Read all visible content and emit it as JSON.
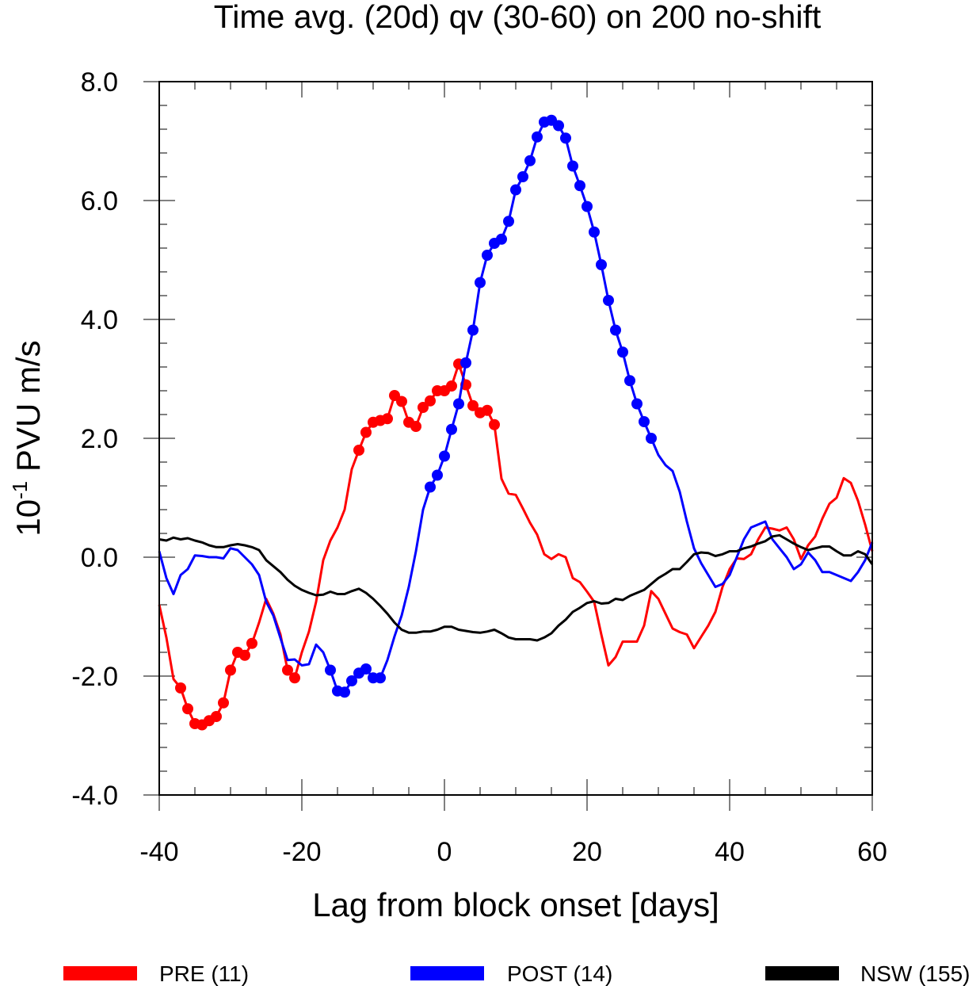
{
  "chart_data": {
    "type": "line",
    "title": "Time avg. (20d) qv (30-60) on 200 no-shift",
    "xlabel": "Lag from block onset [days]",
    "ylabel_base": "10",
    "ylabel_exponent": "-1",
    "ylabel_unit": "PVU m/s",
    "xlim": [
      -40,
      60
    ],
    "ylim": [
      -4,
      8
    ],
    "x_ticks": [
      -40,
      -20,
      0,
      20,
      40,
      60
    ],
    "x_tick_labels": [
      "-40",
      "-20",
      "0",
      "20",
      "40",
      "60"
    ],
    "y_ticks": [
      -4,
      -2,
      0,
      2,
      4,
      6,
      8
    ],
    "y_tick_labels": [
      "-4.0",
      "-2.0",
      "0.0",
      "2.0",
      "4.0",
      "6.0",
      "8.0"
    ],
    "x": [
      -40,
      -39,
      -38,
      -37,
      -36,
      -35,
      -34,
      -33,
      -32,
      -31,
      -30,
      -29,
      -28,
      -27,
      -26,
      -25,
      -24,
      -23,
      -22,
      -21,
      -20,
      -19,
      -18,
      -17,
      -16,
      -15,
      -14,
      -13,
      -12,
      -11,
      -10,
      -9,
      -8,
      -7,
      -6,
      -5,
      -4,
      -3,
      -2,
      -1,
      0,
      1,
      2,
      3,
      4,
      5,
      6,
      7,
      8,
      9,
      10,
      11,
      12,
      13,
      14,
      15,
      16,
      17,
      18,
      19,
      20,
      21,
      22,
      23,
      24,
      25,
      26,
      27,
      28,
      29,
      30,
      31,
      32,
      33,
      34,
      35,
      36,
      37,
      38,
      39,
      40,
      41,
      42,
      43,
      44,
      45,
      46,
      47,
      48,
      49,
      50,
      51,
      52,
      53,
      54,
      55,
      56,
      57,
      58,
      59,
      60
    ],
    "legend_position": "bottom",
    "series": [
      {
        "name": "PRE (11)",
        "color": "#ff0000",
        "values": [
          -0.8,
          -1.35,
          -2.05,
          -2.2,
          -2.55,
          -2.8,
          -2.82,
          -2.75,
          -2.68,
          -2.45,
          -1.9,
          -1.6,
          -1.65,
          -1.45,
          -1.1,
          -0.7,
          -0.95,
          -1.3,
          -1.9,
          -2.03,
          -1.6,
          -1.25,
          -0.75,
          -0.05,
          0.28,
          0.5,
          0.8,
          1.48,
          1.8,
          2.1,
          2.27,
          2.3,
          2.33,
          2.72,
          2.62,
          2.27,
          2.2,
          2.52,
          2.63,
          2.8,
          2.8,
          2.88,
          3.25,
          2.9,
          2.55,
          2.43,
          2.47,
          2.23,
          1.32,
          1.07,
          1.05,
          0.82,
          0.58,
          0.38,
          0.05,
          -0.03,
          0.05,
          0.0,
          -0.35,
          -0.42,
          -0.58,
          -0.75,
          -1.3,
          -1.82,
          -1.68,
          -1.42,
          -1.42,
          -1.42,
          -1.15,
          -0.57,
          -0.7,
          -0.95,
          -1.2,
          -1.26,
          -1.3,
          -1.53,
          -1.34,
          -1.15,
          -0.92,
          -0.5,
          -0.2,
          -0.02,
          -0.03,
          0.05,
          0.3,
          0.5,
          0.48,
          0.45,
          0.5,
          0.3,
          -0.03,
          0.2,
          0.35,
          0.65,
          0.9,
          1.0,
          1.33,
          1.25,
          0.95,
          0.55,
          0.1
        ],
        "marker_ranges": [
          [
            -37,
            -27
          ],
          [
            -22,
            -21
          ],
          [
            -12,
            7
          ]
        ]
      },
      {
        "name": "POST (14)",
        "color": "#0000ff",
        "values": [
          0.1,
          -0.35,
          -0.62,
          -0.3,
          -0.2,
          0.03,
          0.02,
          0.0,
          0.0,
          -0.02,
          0.15,
          0.12,
          0.0,
          -0.12,
          -0.3,
          -0.75,
          -0.98,
          -1.36,
          -1.73,
          -1.72,
          -1.82,
          -1.8,
          -1.47,
          -1.6,
          -1.9,
          -2.25,
          -2.27,
          -2.08,
          -1.95,
          -1.88,
          -2.03,
          -2.03,
          -1.73,
          -1.33,
          -0.98,
          -0.5,
          0.1,
          0.8,
          1.18,
          1.38,
          1.7,
          2.15,
          2.58,
          3.27,
          3.82,
          4.62,
          5.08,
          5.28,
          5.35,
          5.65,
          6.18,
          6.4,
          6.67,
          7.07,
          7.32,
          7.35,
          7.26,
          7.05,
          6.58,
          6.25,
          5.9,
          5.47,
          4.92,
          4.32,
          3.82,
          3.45,
          2.97,
          2.58,
          2.28,
          2.0,
          1.72,
          1.55,
          1.45,
          1.1,
          0.6,
          0.15,
          -0.1,
          -0.3,
          -0.5,
          -0.45,
          -0.3,
          0.0,
          0.3,
          0.5,
          0.55,
          0.6,
          0.3,
          0.15,
          0.0,
          -0.2,
          -0.12,
          0.08,
          -0.05,
          -0.25,
          -0.25,
          -0.3,
          -0.35,
          -0.4,
          -0.25,
          -0.05,
          0.25
        ],
        "marker_ranges": [
          [
            -16,
            -9
          ],
          [
            -2,
            29
          ]
        ]
      },
      {
        "name": "NSW (155)",
        "color": "#000000",
        "values": [
          0.3,
          0.28,
          0.33,
          0.3,
          0.32,
          0.28,
          0.25,
          0.2,
          0.17,
          0.17,
          0.2,
          0.22,
          0.2,
          0.17,
          0.12,
          -0.05,
          -0.15,
          -0.25,
          -0.38,
          -0.48,
          -0.55,
          -0.6,
          -0.64,
          -0.63,
          -0.58,
          -0.62,
          -0.62,
          -0.57,
          -0.53,
          -0.6,
          -0.7,
          -0.82,
          -0.95,
          -1.1,
          -1.22,
          -1.27,
          -1.27,
          -1.25,
          -1.25,
          -1.22,
          -1.17,
          -1.17,
          -1.22,
          -1.24,
          -1.26,
          -1.27,
          -1.25,
          -1.22,
          -1.28,
          -1.35,
          -1.38,
          -1.38,
          -1.38,
          -1.4,
          -1.35,
          -1.28,
          -1.15,
          -1.05,
          -0.92,
          -0.85,
          -0.77,
          -0.74,
          -0.78,
          -0.77,
          -0.7,
          -0.72,
          -0.65,
          -0.6,
          -0.55,
          -0.45,
          -0.35,
          -0.28,
          -0.2,
          -0.2,
          -0.08,
          0.05,
          0.08,
          0.07,
          0.02,
          0.05,
          0.1,
          0.1,
          0.15,
          0.18,
          0.23,
          0.27,
          0.35,
          0.37,
          0.3,
          0.23,
          0.17,
          0.12,
          0.15,
          0.18,
          0.18,
          0.1,
          0.03,
          0.03,
          0.1,
          0.05,
          -0.12
        ]
      }
    ]
  }
}
